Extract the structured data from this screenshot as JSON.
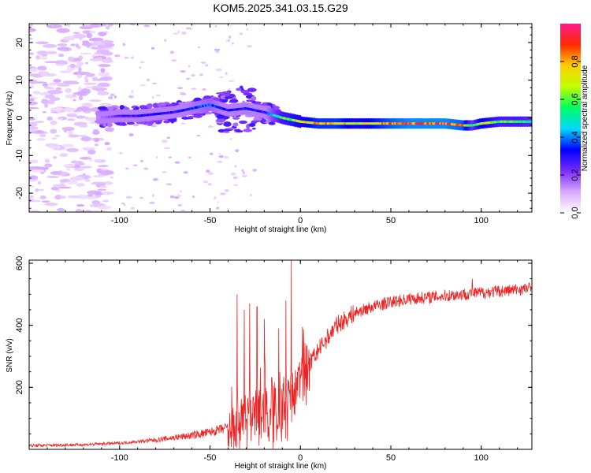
{
  "title": "KOM5.2025.341.03.15.G29",
  "chart_data": [
    {
      "type": "heatmap",
      "name": "spectrogram",
      "xlabel": "Height of straight line (km)",
      "ylabel": "Frequency (Hz)",
      "xlim": [
        -150,
        128
      ],
      "ylim": [
        -25,
        25
      ],
      "xticks": [
        -100,
        -50,
        0,
        50,
        100
      ],
      "xtick_labels": [
        "-100",
        "-50",
        "0",
        "50",
        "100"
      ],
      "yticks": [
        20,
        10,
        0,
        -10,
        -20
      ],
      "ytick_labels": [
        "20",
        "10",
        "0",
        "-10",
        "-20"
      ],
      "colorbar": {
        "label": "Normalized spectral amplitude",
        "range": [
          0,
          1
        ],
        "ticks": [
          0.0,
          0.2,
          0.4,
          0.6,
          0.8
        ],
        "tick_labels": [
          "0.0",
          "0.2",
          "0.4",
          "0.6",
          "0.8"
        ],
        "stops": [
          "#ffffff",
          "#d8a8ff",
          "#7a2bff",
          "#0000ff",
          "#00d8ff",
          "#00ff60",
          "#c0ff00",
          "#ffd000",
          "#ff2a00",
          "#ff1a8c"
        ]
      },
      "ridge": {
        "x": [
          -112,
          -100,
          -90,
          -80,
          -70,
          -60,
          -50,
          -40,
          -30,
          -20,
          -10,
          0,
          10,
          20,
          30,
          40,
          50,
          60,
          70,
          80,
          90,
          95,
          100,
          110,
          120,
          128
        ],
        "freq": [
          0.0,
          0.5,
          0.5,
          1.0,
          1.5,
          2.5,
          3.5,
          2.0,
          2.5,
          1.5,
          0.0,
          -1.0,
          -1.5,
          -1.5,
          -1.5,
          -1.5,
          -1.5,
          -1.5,
          -1.5,
          -1.5,
          -2.0,
          -2.0,
          -1.5,
          -1.0,
          -1.0,
          -1.0
        ],
        "amp": [
          0.15,
          0.25,
          0.3,
          0.3,
          0.3,
          0.35,
          0.4,
          0.3,
          0.35,
          0.3,
          0.6,
          0.7,
          0.8,
          0.8,
          0.7,
          0.75,
          0.85,
          0.9,
          0.9,
          0.9,
          0.85,
          0.5,
          0.75,
          0.6,
          0.6,
          0.55
        ]
      }
    },
    {
      "type": "line",
      "name": "snr",
      "xlabel": "Height of straight line (km)",
      "ylabel": "SNR (v/v)",
      "xlim": [
        -150,
        128
      ],
      "ylim": [
        0,
        610
      ],
      "xticks": [
        -100,
        -50,
        0,
        50,
        100
      ],
      "xtick_labels": [
        "-100",
        "-50",
        "0",
        "50",
        "100"
      ],
      "yticks": [
        200,
        400,
        600
      ],
      "ytick_labels": [
        "200",
        "400",
        "600"
      ],
      "color": "#ee2222",
      "trend": {
        "x": [
          -150,
          -120,
          -100,
          -80,
          -60,
          -50,
          -40,
          -30,
          -20,
          -10,
          -5,
          0,
          10,
          20,
          30,
          40,
          50,
          60,
          70,
          80,
          90,
          100,
          110,
          120,
          128
        ],
        "y": [
          12,
          15,
          20,
          30,
          45,
          55,
          70,
          100,
          120,
          130,
          160,
          230,
          320,
          400,
          440,
          460,
          475,
          485,
          490,
          495,
          500,
          505,
          510,
          515,
          520
        ]
      },
      "spikes": [
        {
          "x": -35,
          "y": 500
        },
        {
          "x": -31,
          "y": 450
        },
        {
          "x": -28,
          "y": 470
        },
        {
          "x": -24,
          "y": 460
        },
        {
          "x": -20,
          "y": 420
        },
        {
          "x": -12,
          "y": 390
        },
        {
          "x": -8,
          "y": 480
        },
        {
          "x": -5,
          "y": 610
        },
        {
          "x": 95,
          "y": 550
        }
      ]
    }
  ]
}
